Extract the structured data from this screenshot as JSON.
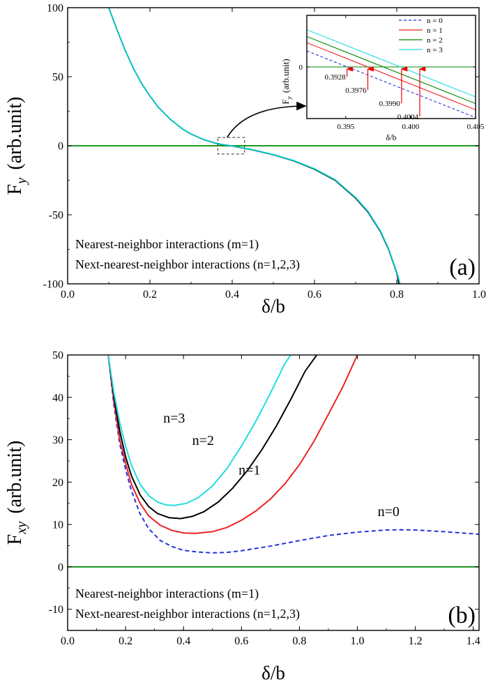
{
  "chart_data": [
    {
      "type": "line",
      "panel_label": "(a)",
      "xlabel_main": "δ/b",
      "ylabel_main": "F",
      "ylabel_sub": "y",
      "ylabel_unit": "(arb.unit)",
      "xlim": [
        0.0,
        1.0
      ],
      "ylim": [
        -100,
        100
      ],
      "xticks": [
        "0.0",
        "0.2",
        "0.4",
        "0.6",
        "0.8",
        "1.0"
      ],
      "yticks": [
        "-100",
        "-50",
        "0",
        "50",
        "100"
      ],
      "annotations": [
        "Nearest-neighbor interactions (m=1)",
        "Next-nearest-neighbor interactions (n=1,2,3)"
      ],
      "zero_line_color": "#008800",
      "series": [
        {
          "color": "#000000",
          "dash": "none",
          "x": [
            0.1,
            0.12,
            0.14,
            0.16,
            0.18,
            0.2,
            0.22,
            0.25,
            0.28,
            0.3,
            0.33,
            0.36,
            0.38,
            0.4,
            0.42,
            0.45,
            0.5,
            0.55,
            0.6,
            0.65,
            0.7,
            0.73,
            0.76,
            0.78,
            0.8,
            0.805
          ],
          "y": [
            100,
            84,
            69,
            56,
            45,
            36,
            28,
            19,
            12,
            8.5,
            4.5,
            1.8,
            0.6,
            -0.2,
            -1.3,
            -3,
            -6.5,
            -11,
            -17,
            -25,
            -38,
            -48,
            -62,
            -75,
            -92,
            -100
          ]
        },
        {
          "color": "#00cccc",
          "dash": "none",
          "x": [
            0.1,
            0.12,
            0.14,
            0.16,
            0.18,
            0.2,
            0.22,
            0.25,
            0.28,
            0.3,
            0.33,
            0.36,
            0.38,
            0.4,
            0.42,
            0.45,
            0.5,
            0.55,
            0.6,
            0.65,
            0.7,
            0.73,
            0.76,
            0.78,
            0.8,
            0.808
          ],
          "y": [
            100,
            84,
            69,
            56,
            45,
            36,
            28,
            19,
            12,
            8.5,
            4.6,
            1.9,
            0.7,
            -0.1,
            -1.2,
            -2.9,
            -6.4,
            -10.8,
            -16.7,
            -24.6,
            -37.5,
            -47.5,
            -61.5,
            -74.5,
            -91.5,
            -100
          ]
        }
      ],
      "callout_box": {
        "xlim": [
          0.365,
          0.43
        ],
        "ylim": [
          -6,
          6
        ]
      }
    },
    {
      "type": "line",
      "inset": true,
      "xlabel_main": "δ/b",
      "ylabel_main": "F",
      "ylabel_sub": "y",
      "ylabel_unit": "(arb.unit)",
      "xlim": [
        0.392,
        0.405
      ],
      "ylim": [
        -1,
        1
      ],
      "xticks": [
        "0.395",
        "0.400",
        "0.405"
      ],
      "yticks": [
        "0"
      ],
      "series": [
        {
          "name": "n = 0",
          "color": "#2233dd",
          "dash": "4,3",
          "x": [
            0.392,
            0.405
          ],
          "y": [
            0.31,
            -0.98
          ]
        },
        {
          "name": "n = 1",
          "color": "#ee2222",
          "dash": "none",
          "x": [
            0.392,
            0.405
          ],
          "y": [
            0.47,
            -0.83
          ]
        },
        {
          "name": "n = 2",
          "color": "#008800",
          "dash": "none",
          "x": [
            0.392,
            0.405
          ],
          "y": [
            0.59,
            -0.71
          ]
        },
        {
          "name": "n = 3",
          "color": "#22dddd",
          "dash": "none",
          "x": [
            0.392,
            0.405
          ],
          "y": [
            0.72,
            -0.58
          ]
        }
      ],
      "arrow_labels": [
        {
          "text": "0.3928",
          "x": 0.3951
        },
        {
          "text": "0.3976",
          "x": 0.3967
        },
        {
          "text": "0.3990",
          "x": 0.3993
        },
        {
          "text": "0.4004",
          "x": 0.4007
        }
      ]
    },
    {
      "type": "line",
      "panel_label": "(b)",
      "xlabel_main": "δ/b",
      "ylabel_main": "F",
      "ylabel_sub": "xy",
      "ylabel_unit": "(arb.unit)",
      "xlim": [
        0.0,
        1.42
      ],
      "ylim": [
        -15,
        50
      ],
      "xticks": [
        "0.0",
        "0.2",
        "0.4",
        "0.6",
        "0.8",
        "1.0",
        "1.2",
        "1.4"
      ],
      "yticks": [
        "-10",
        "0",
        "10",
        "20",
        "30",
        "40",
        "50"
      ],
      "annotations": [
        "Nearest-neighbor interactions (m=1)",
        "Next-nearest-neighbor interactions (n=1,2,3)"
      ],
      "zero_line_color": "#008800",
      "series": [
        {
          "name": "n=0",
          "color": "#2233dd",
          "dash": "6,4",
          "x": [
            0.14,
            0.16,
            0.18,
            0.2,
            0.22,
            0.25,
            0.28,
            0.32,
            0.36,
            0.4,
            0.45,
            0.5,
            0.55,
            0.6,
            0.7,
            0.8,
            0.9,
            1.0,
            1.1,
            1.15,
            1.2,
            1.3,
            1.42
          ],
          "y": [
            50,
            38,
            29,
            23,
            18,
            12.5,
            9,
            6.2,
            4.8,
            3.9,
            3.5,
            3.3,
            3.4,
            3.8,
            4.9,
            6.2,
            7.4,
            8.2,
            8.7,
            8.75,
            8.7,
            8.3,
            7.7
          ]
        },
        {
          "name": "n=1",
          "color": "#ee2222",
          "dash": "none",
          "x": [
            0.14,
            0.16,
            0.18,
            0.2,
            0.22,
            0.25,
            0.28,
            0.32,
            0.36,
            0.4,
            0.44,
            0.5,
            0.55,
            0.6,
            0.65,
            0.7,
            0.75,
            0.8,
            0.85,
            0.9,
            0.95,
            1.0
          ],
          "y": [
            50,
            39,
            30,
            24.5,
            19.5,
            15,
            12,
            9.8,
            8.6,
            8,
            7.9,
            8.3,
            9.3,
            11,
            13.2,
            16,
            19.6,
            24.1,
            29.6,
            36,
            42.5,
            50
          ]
        },
        {
          "name": "n=2",
          "color": "#000000",
          "dash": "none",
          "x": [
            0.14,
            0.16,
            0.18,
            0.2,
            0.22,
            0.25,
            0.28,
            0.31,
            0.35,
            0.39,
            0.43,
            0.47,
            0.52,
            0.57,
            0.62,
            0.67,
            0.72,
            0.77,
            0.82,
            0.86
          ],
          "y": [
            50,
            40,
            32,
            26,
            21.5,
            17,
            14.2,
            12.6,
            11.6,
            11.4,
            11.9,
            13,
            15.3,
            18.6,
            22.7,
            27.6,
            33.2,
            39.5,
            46.2,
            50
          ]
        },
        {
          "name": "n=3",
          "color": "#22dddd",
          "dash": "none",
          "x": [
            0.14,
            0.16,
            0.18,
            0.2,
            0.22,
            0.25,
            0.28,
            0.31,
            0.34,
            0.37,
            0.41,
            0.45,
            0.5,
            0.55,
            0.6,
            0.65,
            0.7,
            0.75,
            0.77
          ],
          "y": [
            50,
            41,
            34,
            28.5,
            24,
            19.5,
            16.8,
            15.3,
            14.6,
            14.5,
            15,
            16.3,
            19.1,
            23.2,
            28.5,
            34.4,
            41,
            48,
            50
          ]
        }
      ],
      "curve_labels": [
        {
          "text": "n=3",
          "x": 0.33,
          "y": 34
        },
        {
          "text": "n=2",
          "x": 0.43,
          "y": 28.8
        },
        {
          "text": "n=1",
          "x": 0.59,
          "y": 21.8
        },
        {
          "text": "n=0",
          "x": 1.07,
          "y": 12
        }
      ]
    }
  ]
}
